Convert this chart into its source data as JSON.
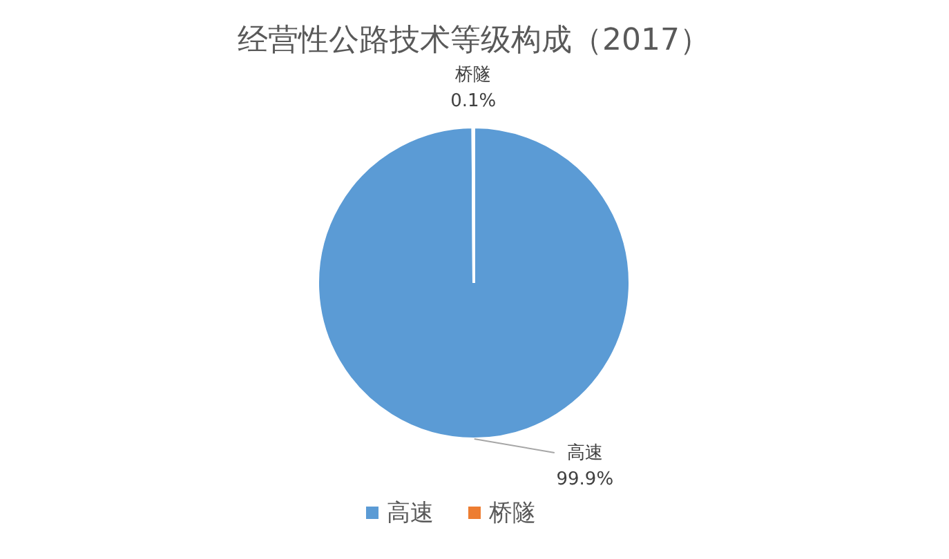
{
  "chart_data": {
    "type": "pie",
    "title": "经营性公路技术等级构成（2017）",
    "categories": [
      "高速",
      "桥隧"
    ],
    "values": [
      99.9,
      0.1
    ],
    "colors": [
      "#5b9bd5",
      "#ed7d31"
    ],
    "value_labels": [
      "99.9%",
      "0.1%"
    ],
    "legend": "bottom"
  }
}
